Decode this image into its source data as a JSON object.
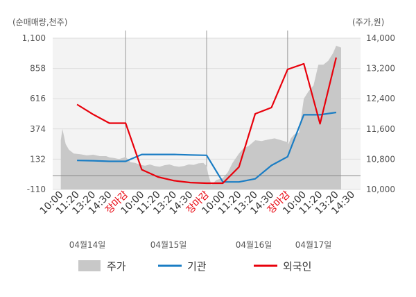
{
  "chart_data": {
    "type": "line",
    "left_axis_title": "(순매매량,천주)",
    "right_axis_title": "(주가,원)",
    "left_ticks": [
      "1,100",
      "858",
      "616",
      "374",
      "132",
      "-110"
    ],
    "right_ticks": [
      "14,000",
      "13,200",
      "12,400",
      "11,600",
      "10,800",
      "10,000"
    ],
    "left_ylim": [
      -110,
      1100
    ],
    "right_ylim": [
      10000,
      14000
    ],
    "x_tick_labels": [
      {
        "label": "10:00",
        "color": "#333333"
      },
      {
        "label": "11:20",
        "color": "#333333"
      },
      {
        "label": "13:20",
        "color": "#333333"
      },
      {
        "label": "14:30",
        "color": "#333333"
      },
      {
        "label": "장마감",
        "color": "#e8000b"
      },
      {
        "label": "10:00",
        "color": "#333333"
      },
      {
        "label": "11:20",
        "color": "#333333"
      },
      {
        "label": "13:20",
        "color": "#333333"
      },
      {
        "label": "14:30",
        "color": "#333333"
      },
      {
        "label": "장마감",
        "color": "#e8000b"
      },
      {
        "label": "10:00",
        "color": "#333333"
      },
      {
        "label": "11:20",
        "color": "#333333"
      },
      {
        "label": "13:20",
        "color": "#333333"
      },
      {
        "label": "14:30",
        "color": "#333333"
      },
      {
        "label": "장마감",
        "color": "#e8000b"
      },
      {
        "label": "10:00",
        "color": "#333333"
      },
      {
        "label": "11:20",
        "color": "#333333"
      },
      {
        "label": "13:20",
        "color": "#333333"
      },
      {
        "label": "14:30",
        "color": "#333333"
      }
    ],
    "dates": [
      {
        "label": "04월14일",
        "day_index": 0
      },
      {
        "label": "04월15일",
        "day_index": 1
      },
      {
        "label": "04월16일",
        "day_index": 2
      },
      {
        "label": "04월17일",
        "day_index": 3
      }
    ],
    "grid": true,
    "legend_position": "bottom",
    "series": [
      {
        "name": "주가",
        "type": "area",
        "axis": "right",
        "color": "#c8c8c8",
        "x": [
          0,
          0.1,
          0.2,
          0.3,
          0.5,
          0.8,
          1.2,
          1.6,
          2.0,
          2.4,
          2.8,
          3.0,
          3.3,
          3.6,
          4.0,
          4.3,
          4.6,
          4.9,
          5.2,
          5.5,
          5.8,
          6.1,
          6.4,
          6.7,
          7.0,
          7.3,
          7.6,
          7.9,
          8.2,
          8.5,
          8.8,
          9.0,
          9.1,
          9.3,
          9.6,
          10.0,
          10.3,
          10.6,
          11.0,
          11.3,
          11.6,
          12.0,
          12.4,
          12.8,
          13.2,
          13.6,
          14.0,
          14.05,
          14.2,
          14.4,
          14.7,
          15.0,
          15.3,
          15.6,
          15.9,
          16.2,
          16.5,
          16.8,
          17.0,
          17.3
        ],
        "values": [
          11300,
          11600,
          11400,
          11200,
          11050,
          10950,
          10930,
          10900,
          10920,
          10880,
          10880,
          10850,
          10830,
          10800,
          10860,
          10720,
          10700,
          10650,
          10630,
          10660,
          10620,
          10600,
          10640,
          10660,
          10620,
          10600,
          10620,
          10660,
          10650,
          10690,
          10700,
          10620,
          10400,
          10120,
          10250,
          10300,
          10450,
          10700,
          10950,
          11100,
          11150,
          11300,
          11280,
          11320,
          11350,
          11300,
          11250,
          11200,
          11350,
          11450,
          11500,
          12400,
          12600,
          12750,
          13300,
          13300,
          13400,
          13600,
          13800,
          13750
        ]
      },
      {
        "name": "기관",
        "type": "line",
        "axis": "left",
        "color": "#1a7dc4",
        "x": [
          1,
          2,
          3,
          4,
          5,
          6,
          7,
          8,
          9,
          10,
          11,
          12,
          13,
          14,
          15,
          16,
          17
        ],
        "values": [
          122,
          120,
          115,
          115,
          170,
          170,
          170,
          166,
          163,
          -50,
          -50,
          -25,
          82,
          152,
          487,
          487,
          506
        ]
      },
      {
        "name": "외국인",
        "type": "line",
        "axis": "left",
        "color": "#e8000b",
        "x": [
          1,
          2,
          3,
          4,
          5,
          6,
          7,
          8,
          9,
          10,
          11,
          12,
          13,
          14,
          15,
          16,
          17
        ],
        "values": [
          570,
          490,
          420,
          420,
          48,
          -10,
          -40,
          -55,
          -60,
          -60,
          70,
          495,
          545,
          850,
          895,
          415,
          945
        ]
      }
    ]
  }
}
